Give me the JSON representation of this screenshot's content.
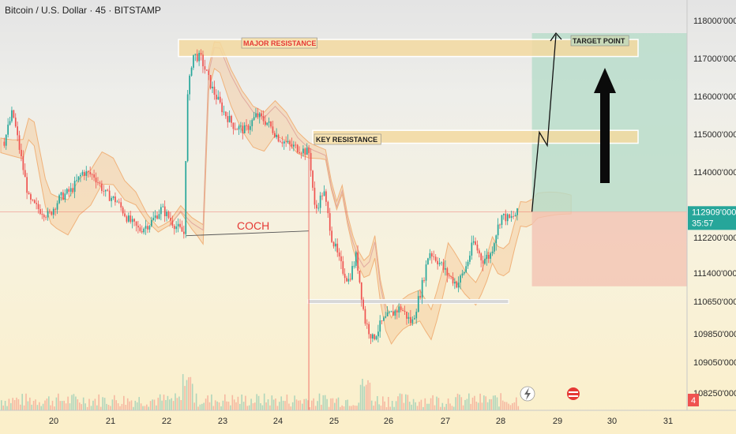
{
  "header": {
    "title": "Bitcoin / U.S. Dollar · 45 · BITSTAMP"
  },
  "chart_data": {
    "type": "candlestick",
    "x_ticks": [
      "20",
      "21",
      "22",
      "23",
      "24",
      "25",
      "26",
      "27",
      "28",
      "29",
      "30",
      "31"
    ],
    "y_ticks": [
      "118000'000",
      "117000'000",
      "116000'000",
      "115000'000",
      "114000'000",
      "112200'000",
      "111400'000",
      "110650'000",
      "109850'000",
      "109050'000",
      "108250'000"
    ],
    "current_price": "112909'000",
    "countdown": "35:57",
    "last_price": 112909,
    "badge": "4",
    "annotations": {
      "major_resistance": "MAJOR RESISTANCE",
      "key_resistance": "KEY RESISTANCE",
      "target_point": "TARGET POINT",
      "coch": "COCH"
    },
    "colors": {
      "up": "#26a69a",
      "down": "#ef5350",
      "cloud_bull": "#f6c38f",
      "cloud_bear": "#c9c9c9",
      "target_zone": "#b7dcc9",
      "stop_zone": "#f2c3b3",
      "resistance_zone": "#f3d9a0"
    }
  }
}
